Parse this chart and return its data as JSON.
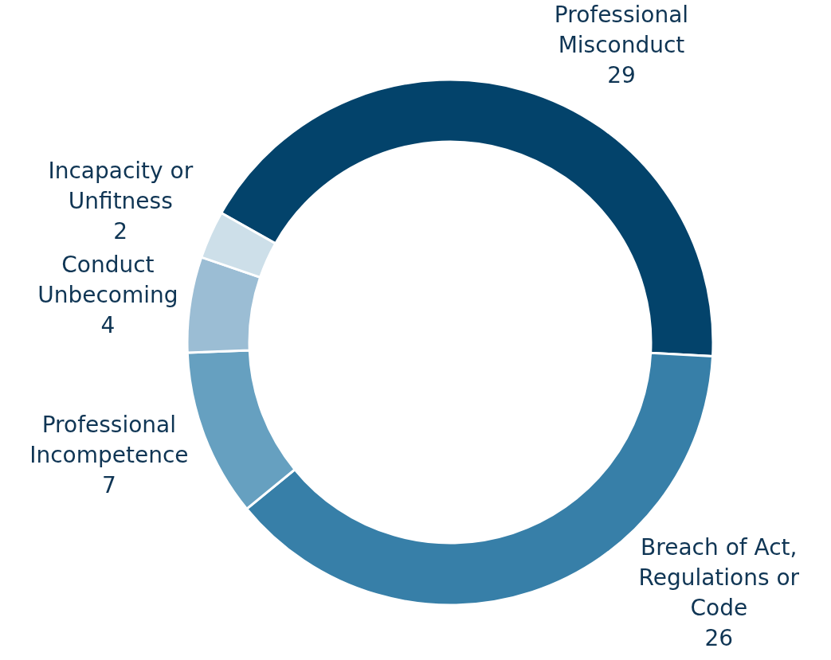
{
  "chart_data": {
    "type": "donut",
    "categories": [
      "Professional Misconduct",
      "Breach of Act, Regulations or Code",
      "Professional Incompetence",
      "Conduct Unbecoming",
      "Incapacity or Unfitness"
    ],
    "values": [
      29,
      26,
      7,
      4,
      2
    ],
    "colors": [
      "#03436b",
      "#377fa8",
      "#66a0c0",
      "#9bbdd4",
      "#cddfe9"
    ],
    "data_labels": true
  }
}
